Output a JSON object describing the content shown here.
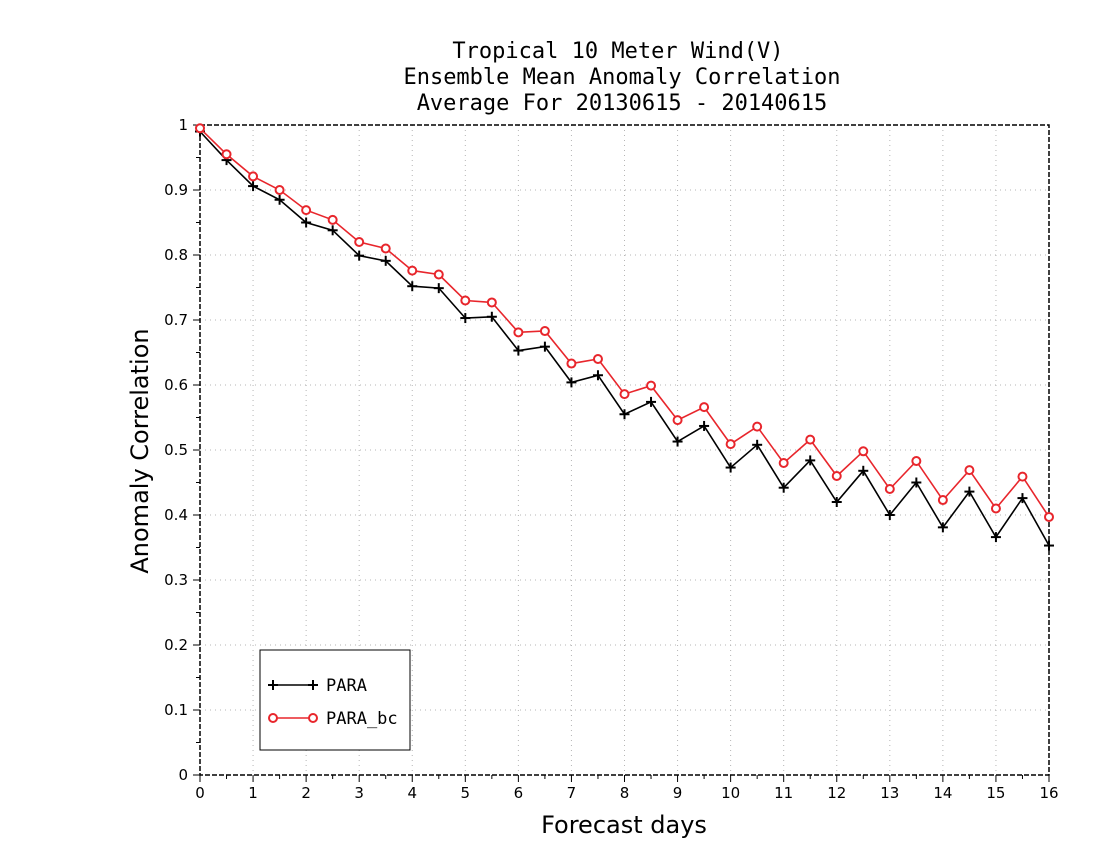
{
  "chart_data": {
    "type": "line",
    "title": [
      "Tropical 10 Meter Wind(V)",
      "Ensemble Mean Anomaly Correlation",
      "Average For 20130615 - 20140615"
    ],
    "xlabel": "Forecast days",
    "ylabel": "Anomaly Correlation",
    "xlim": [
      0,
      16
    ],
    "ylim": [
      0,
      1
    ],
    "x_ticks": [
      0,
      1,
      2,
      3,
      4,
      5,
      6,
      7,
      8,
      9,
      10,
      11,
      12,
      13,
      14,
      15,
      16
    ],
    "y_ticks": [
      0,
      0.1,
      0.2,
      0.3,
      0.4,
      0.5,
      0.6,
      0.7,
      0.8,
      0.9,
      1
    ],
    "y_tick_labels": [
      "0",
      "0.1",
      "0.2",
      "0.3",
      "0.4",
      "0.5",
      "0.6",
      "0.7",
      "0.8",
      "0.9",
      "1"
    ],
    "grid": true,
    "legend_position": "bottom-left",
    "x": [
      0,
      0.5,
      1,
      1.5,
      2,
      2.5,
      3,
      3.5,
      4,
      4.5,
      5,
      5.5,
      6,
      6.5,
      7,
      7.5,
      8,
      8.5,
      9,
      9.5,
      10,
      10.5,
      11,
      11.5,
      12,
      12.5,
      13,
      13.5,
      14,
      14.5,
      15,
      15.5,
      16
    ],
    "series": [
      {
        "name": "PARA",
        "color": "#000000",
        "marker": "plus",
        "values": [
          0.99,
          0.946,
          0.906,
          0.885,
          0.85,
          0.838,
          0.799,
          0.791,
          0.752,
          0.749,
          0.703,
          0.705,
          0.653,
          0.659,
          0.604,
          0.615,
          0.555,
          0.574,
          0.513,
          0.537,
          0.473,
          0.508,
          0.442,
          0.484,
          0.42,
          0.468,
          0.4,
          0.45,
          0.381,
          0.436,
          0.366,
          0.426,
          0.353
        ]
      },
      {
        "name": "PARA_bc",
        "color": "#e8262c",
        "marker": "circle",
        "values": [
          0.995,
          0.955,
          0.921,
          0.9,
          0.869,
          0.854,
          0.82,
          0.81,
          0.776,
          0.77,
          0.73,
          0.727,
          0.681,
          0.683,
          0.633,
          0.64,
          0.586,
          0.599,
          0.546,
          0.566,
          0.509,
          0.536,
          0.48,
          0.516,
          0.46,
          0.498,
          0.44,
          0.483,
          0.423,
          0.469,
          0.41,
          0.459,
          0.397
        ]
      }
    ]
  }
}
